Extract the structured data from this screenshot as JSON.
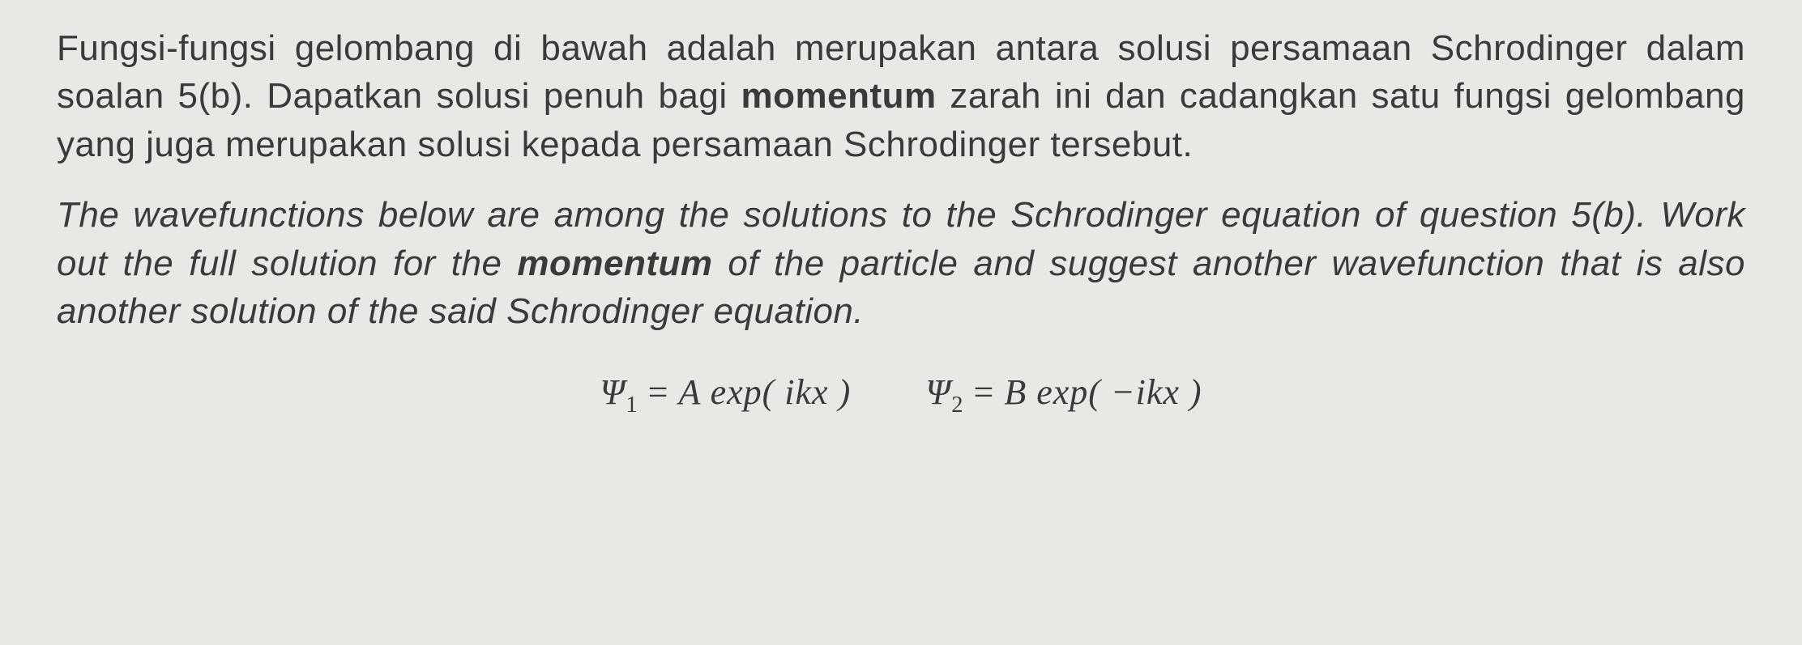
{
  "paragraph_malay": {
    "part1": "Fungsi-fungsi gelombang di bawah adalah merupakan antara solusi persamaan Schrodinger dalam soalan 5(b). Dapatkan solusi penuh bagi ",
    "bold_word": "momentum",
    "part2": " zarah ini dan cadangkan satu fungsi gelombang yang juga merupakan solusi kepada persamaan Schrodinger tersebut."
  },
  "paragraph_english": {
    "part1": "The wavefunctions below are among the solutions to the Schrodinger equation of question 5(b). Work out the full solution for the ",
    "bold_word": "momentum",
    "part2": " of the particle and suggest another wavefunction that is also another solution of the said Schrodinger equation."
  },
  "equations": {
    "eq1": {
      "psi": "Ψ",
      "sub": "1",
      "equals": "  =  ",
      "coeff": "A",
      "func": " exp( ",
      "arg": "ikx",
      "close": " )"
    },
    "eq2": {
      "psi": "Ψ",
      "sub": "2",
      "equals": "  =  ",
      "coeff": "B",
      "func": " exp( ",
      "arg": "−ikx",
      "close": " )"
    }
  },
  "colors": {
    "background": "#e8e8e4",
    "text": "#3a3a3a"
  },
  "typography": {
    "body_fontsize": 44,
    "body_family": "Arial",
    "equation_family": "Times New Roman"
  }
}
